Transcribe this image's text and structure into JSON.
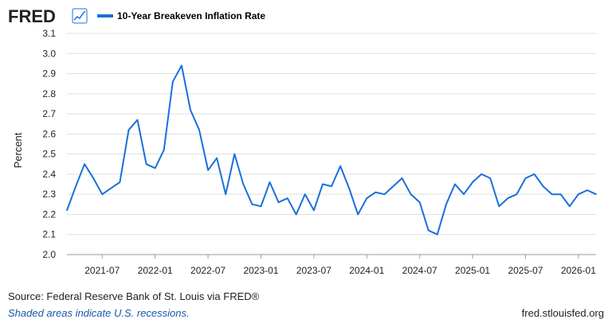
{
  "header": {
    "logo_text": "FRED",
    "logo_icon": "chart-graph-icon",
    "legend_label": "10-Year Breakeven Inflation Rate"
  },
  "colors": {
    "series": "#1a6fdc",
    "grid": "#dfdfdf",
    "logo": "#212121",
    "link": "#1a57a6"
  },
  "footer": {
    "source_prefix": "Source: Federal Reserve Bank of St. Louis via ",
    "source_link": "FRED®",
    "recession_note": "Shaded areas indicate U.S. recessions.",
    "site": "fred.stlouisfed.org"
  },
  "chart_data": {
    "type": "line",
    "title": "",
    "xlabel": "",
    "ylabel": "Percent",
    "ylim": [
      2.0,
      3.1
    ],
    "yticks": [
      "2.0",
      "2.1",
      "2.2",
      "2.3",
      "2.4",
      "2.5",
      "2.6",
      "2.7",
      "2.8",
      "2.9",
      "3.0",
      "3.1"
    ],
    "xlim": [
      "2021-03",
      "2026-03"
    ],
    "xticks": [
      "2021-07",
      "2022-01",
      "2022-07",
      "2023-01",
      "2023-07",
      "2024-01",
      "2024-07",
      "2025-01",
      "2025-07",
      "2026-01"
    ],
    "grid": true,
    "legend": "top-left",
    "series": [
      {
        "name": "10-Year Breakeven Inflation Rate",
        "x": [
          "2021-03",
          "2021-04",
          "2021-05",
          "2021-06",
          "2021-07",
          "2021-08",
          "2021-09",
          "2021-10",
          "2021-11",
          "2021-12",
          "2022-01",
          "2022-02",
          "2022-03",
          "2022-04",
          "2022-05",
          "2022-06",
          "2022-07",
          "2022-08",
          "2022-09",
          "2022-10",
          "2022-11",
          "2022-12",
          "2023-01",
          "2023-02",
          "2023-03",
          "2023-04",
          "2023-05",
          "2023-06",
          "2023-07",
          "2023-08",
          "2023-09",
          "2023-10",
          "2023-11",
          "2023-12",
          "2024-01",
          "2024-02",
          "2024-03",
          "2024-04",
          "2024-05",
          "2024-06",
          "2024-07",
          "2024-08",
          "2024-09",
          "2024-10",
          "2024-11",
          "2024-12",
          "2025-01",
          "2025-02",
          "2025-03",
          "2025-04",
          "2025-05",
          "2025-06",
          "2025-07",
          "2025-08",
          "2025-09",
          "2025-10",
          "2025-11",
          "2025-12",
          "2026-01",
          "2026-02",
          "2026-03"
        ],
        "values": [
          2.22,
          2.34,
          2.45,
          2.38,
          2.3,
          2.33,
          2.36,
          2.62,
          2.67,
          2.45,
          2.43,
          2.52,
          2.86,
          2.94,
          2.72,
          2.62,
          2.42,
          2.48,
          2.3,
          2.5,
          2.35,
          2.25,
          2.24,
          2.36,
          2.26,
          2.28,
          2.2,
          2.3,
          2.22,
          2.35,
          2.34,
          2.44,
          2.33,
          2.2,
          2.28,
          2.31,
          2.3,
          2.34,
          2.38,
          2.3,
          2.26,
          2.12,
          2.1,
          2.25,
          2.35,
          2.3,
          2.36,
          2.4,
          2.38,
          2.24,
          2.28,
          2.3,
          2.38,
          2.4,
          2.34,
          2.3,
          2.3,
          2.24,
          2.3,
          2.32,
          2.3
        ]
      }
    ]
  }
}
